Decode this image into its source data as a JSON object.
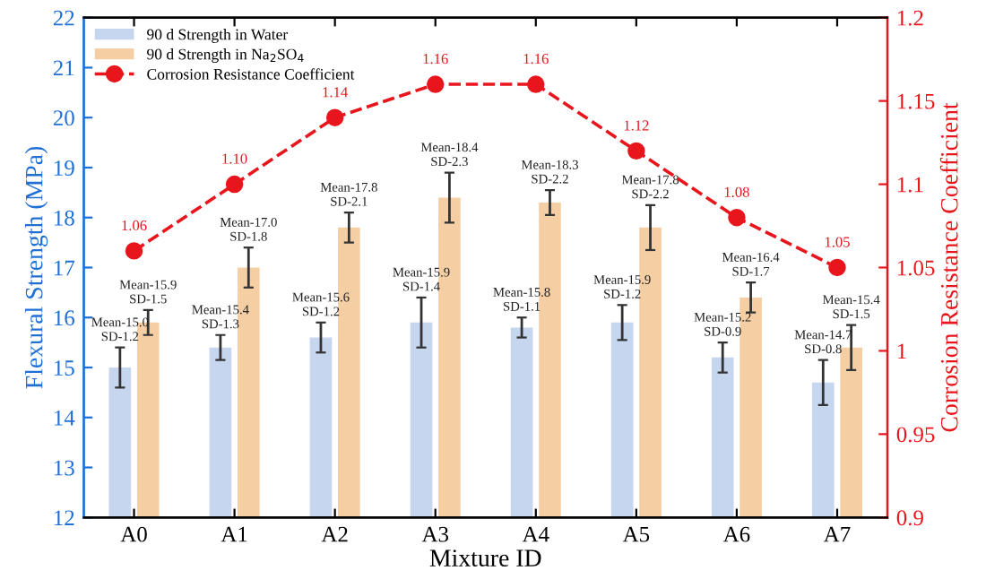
{
  "chart_data": {
    "type": "bar",
    "xlabel": "Mixture ID",
    "ylabel": "Flexural Strength (MPa)",
    "y2label": "Corrosion Resistance Coefficient",
    "categories": [
      "A0",
      "A1",
      "A2",
      "A3",
      "A4",
      "A5",
      "A6",
      "A7"
    ],
    "series": [
      {
        "name": "90 d Strength in Water",
        "color": "#c5d6ee",
        "values": [
          15.0,
          15.4,
          15.6,
          15.9,
          15.8,
          15.9,
          15.2,
          14.7
        ],
        "errors": [
          0.4,
          0.25,
          0.3,
          0.5,
          0.2,
          0.35,
          0.3,
          0.45
        ],
        "value_labels": [
          "Mean-15.0\nSD-1.2",
          "Mean-15.4\nSD-1.3",
          "Mean-15.6\nSD-1.2",
          "Mean-15.9\nSD-1.4",
          "Mean-15.8\nSD-1.1",
          "Mean-15.9\nSD-1.2",
          "Mean-15.2\nSD-0.9",
          "Mean-14.7\nSD-0.8"
        ]
      },
      {
        "name": "90 d Strength in Na$_{2}$SO$_{4}$",
        "color": "#f5cfa3",
        "values": [
          15.9,
          17.0,
          17.8,
          18.4,
          18.3,
          17.8,
          16.4,
          15.4
        ],
        "errors": [
          0.25,
          0.4,
          0.3,
          0.5,
          0.25,
          0.45,
          0.3,
          0.45
        ],
        "value_labels": [
          "Mean-15.9\nSD-1.5",
          "Mean-17.0\nSD-1.8",
          "Mean-17.8\nSD-2.1",
          "Mean-18.4\nSD-2.3",
          "Mean-18.3\nSD-2.2",
          "Mean-17.8\nSD-2.2",
          "Mean-16.4\nSD-1.7",
          "Mean-15.4\nSD-1.5"
        ]
      },
      {
        "name": "Corrosion Resistance Coefficient",
        "type": "line",
        "axis": "y2",
        "color": "#e8161c",
        "values": [
          1.06,
          1.1,
          1.14,
          1.16,
          1.16,
          1.12,
          1.08,
          1.05
        ],
        "value_labels": [
          "1.06",
          "1.10",
          "1.14",
          "1.16",
          "1.16",
          "1.12",
          "1.08",
          "1.05"
        ],
        "marker": "circle",
        "line_style": "dashed"
      }
    ],
    "ylim": [
      12,
      22
    ],
    "yticks": [
      12,
      13,
      14,
      15,
      16,
      17,
      18,
      19,
      20,
      21,
      22
    ],
    "y2lim": [
      0.9,
      1.2
    ],
    "y2ticks": [
      0.9,
      0.95,
      1,
      1.05,
      1.1,
      1.15,
      1.2
    ],
    "legend": "top left",
    "grid": false
  }
}
